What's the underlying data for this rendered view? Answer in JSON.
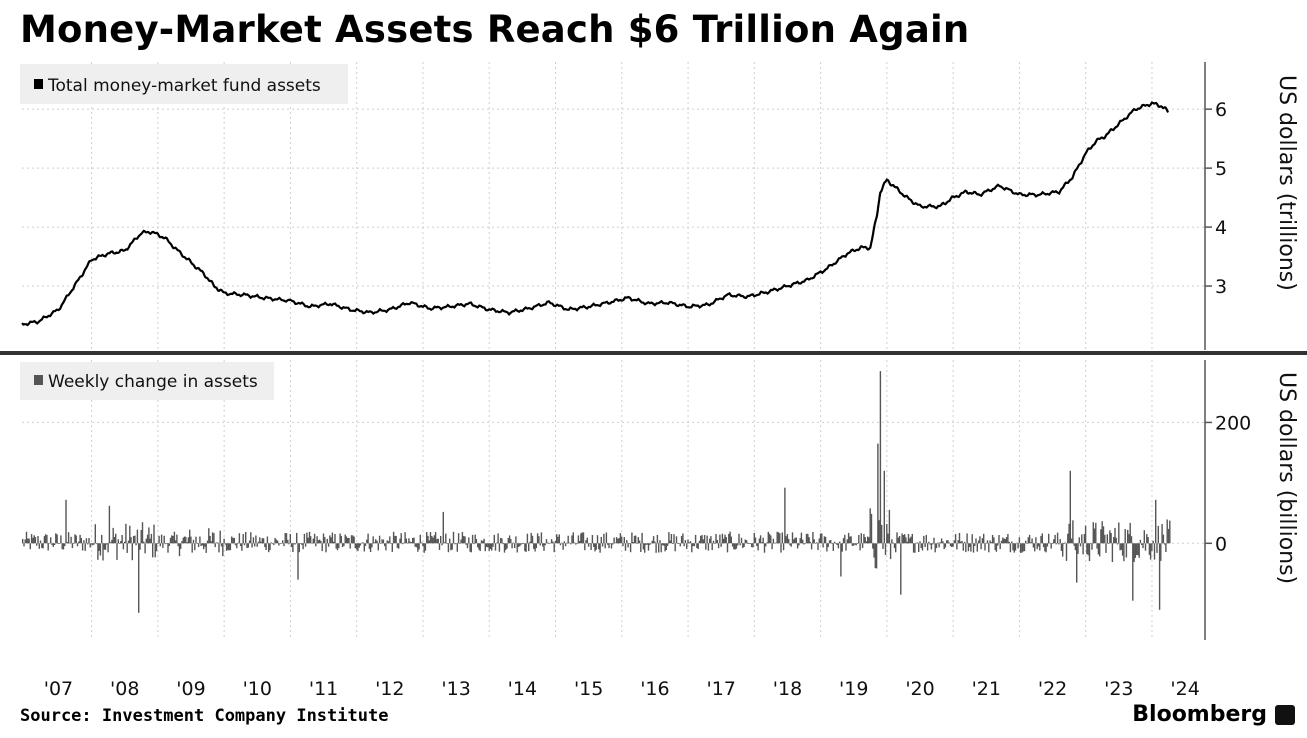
{
  "title": "Money-Market Assets Reach $6 Trillion Again",
  "source": "Source: Investment Company Institute",
  "brand": "Bloomberg",
  "brand_icon": "bloomberg-terminal-icon",
  "chart_data": [
    {
      "type": "line",
      "legend": "Total money-market fund assets",
      "ylabel": "US dollars (trillions)",
      "yticks": [
        3,
        4,
        5,
        6
      ],
      "ylim": [
        2.0,
        6.8
      ],
      "xlim": [
        2006.95,
        2024.8
      ],
      "color": "#000000",
      "grid": true,
      "legend_position": "top-left",
      "series": [
        {
          "x": [
            2006.95,
            2007.2,
            2007.5,
            2007.8,
            2008.0,
            2008.25,
            2008.5,
            2008.75,
            2008.9,
            2009.1,
            2009.3,
            2009.5,
            2009.7,
            2009.85,
            2010.0,
            2010.3,
            2010.6,
            2011.0,
            2011.3,
            2011.6,
            2011.9,
            2012.2,
            2012.5,
            2012.8,
            2013.1,
            2013.4,
            2013.7,
            2014.0,
            2014.3,
            2014.6,
            2014.9,
            2015.2,
            2015.5,
            2015.8,
            2016.1,
            2016.4,
            2016.7,
            2017.0,
            2017.3,
            2017.6,
            2017.9,
            2018.2,
            2018.5,
            2018.8,
            2019.1,
            2019.4,
            2019.6,
            2019.75,
            2019.85,
            2019.9,
            2020.0,
            2020.1,
            2020.3,
            2020.5,
            2020.8,
            2021.0,
            2021.2,
            2021.4,
            2021.7,
            2022.0,
            2022.3,
            2022.6,
            2022.8,
            2023.0,
            2023.15,
            2023.3,
            2023.5,
            2023.75,
            2024.0,
            2024.15,
            2024.25
          ],
          "y": [
            2.35,
            2.4,
            2.6,
            3.1,
            3.45,
            3.55,
            3.6,
            3.9,
            3.92,
            3.82,
            3.6,
            3.4,
            3.2,
            3.0,
            2.88,
            2.85,
            2.8,
            2.75,
            2.65,
            2.7,
            2.6,
            2.55,
            2.6,
            2.72,
            2.62,
            2.65,
            2.7,
            2.6,
            2.55,
            2.62,
            2.72,
            2.6,
            2.65,
            2.72,
            2.8,
            2.7,
            2.72,
            2.65,
            2.68,
            2.85,
            2.82,
            2.9,
            3.0,
            3.1,
            3.3,
            3.55,
            3.65,
            3.65,
            4.2,
            4.6,
            4.8,
            4.7,
            4.5,
            4.35,
            4.35,
            4.5,
            4.6,
            4.55,
            4.7,
            4.55,
            4.55,
            4.6,
            4.85,
            5.25,
            5.45,
            5.55,
            5.75,
            6.0,
            6.1,
            6.05,
            5.95
          ]
        }
      ]
    },
    {
      "type": "bar",
      "legend": "Weekly change in assets",
      "ylabel": "US dollars (billions)",
      "yticks": [
        0,
        200
      ],
      "ylim": [
        -160,
        300
      ],
      "xlim": [
        2006.95,
        2024.8
      ],
      "color": "#555555",
      "grid": true,
      "legend_position": "top-left",
      "spikes": [
        {
          "x": 2008.7,
          "y": -115
        },
        {
          "x": 2008.25,
          "y": 62
        },
        {
          "x": 2007.6,
          "y": 72
        },
        {
          "x": 2011.1,
          "y": -60
        },
        {
          "x": 2013.3,
          "y": 52
        },
        {
          "x": 2018.45,
          "y": 92
        },
        {
          "x": 2019.3,
          "y": -55
        },
        {
          "x": 2020.2,
          "y": -85
        },
        {
          "x": 2019.85,
          "y": 165
        },
        {
          "x": 2019.9,
          "y": 285
        },
        {
          "x": 2019.95,
          "y": 120
        },
        {
          "x": 2022.75,
          "y": 120
        },
        {
          "x": 2022.85,
          "y": -65
        },
        {
          "x": 2023.7,
          "y": -95
        },
        {
          "x": 2024.05,
          "y": 72
        },
        {
          "x": 2024.1,
          "y": -110
        }
      ]
    }
  ],
  "x_tick_labels": [
    "'07",
    "'08",
    "'09",
    "'10",
    "'11",
    "'12",
    "'13",
    "'14",
    "'15",
    "'16",
    "'17",
    "'18",
    "'19",
    "'20",
    "'21",
    "'22",
    "'23",
    "'24"
  ]
}
